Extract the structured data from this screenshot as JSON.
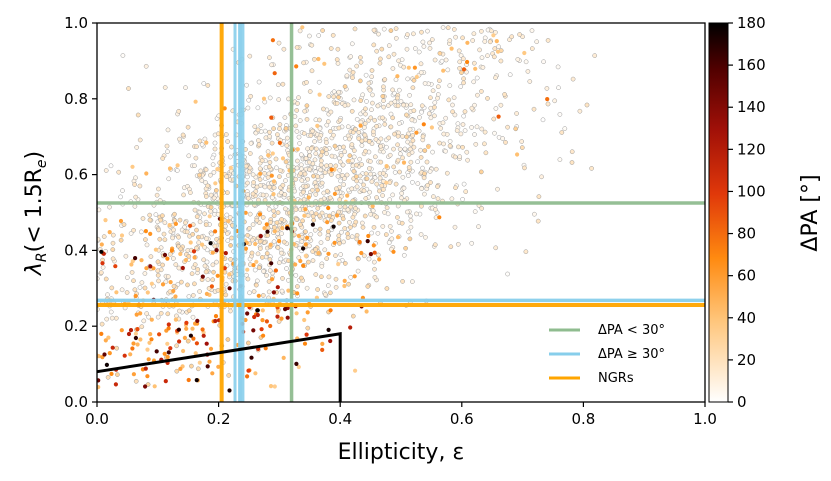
{
  "chart_data": {
    "type": "scatter",
    "xlabel": "Ellipticity, ε",
    "ylabel": "λ",
    "ylabel_sub": "R",
    "ylabel_tail": "(< 1.5R",
    "ylabel_tail_sub": "e",
    "ylabel_close": ")",
    "xlim": [
      0.0,
      1.0
    ],
    "ylim": [
      0.0,
      1.0
    ],
    "xticks": [
      "0.0",
      "0.2",
      "0.4",
      "0.6",
      "0.8",
      "1.0"
    ],
    "yticks": [
      "0.0",
      "0.2",
      "0.4",
      "0.6",
      "0.8",
      "1.0"
    ],
    "colorbar": {
      "label": "ΔPA [°]",
      "range": [
        0,
        180
      ],
      "ticks": [
        "0",
        "20",
        "40",
        "60",
        "80",
        "100",
        "120",
        "140",
        "160",
        "180"
      ],
      "colormap": "gist_heat_r"
    },
    "reference_lines": [
      {
        "name": "ΔPA < 30°",
        "color": "#8fbc8f",
        "x": 0.32,
        "y": 0.525
      },
      {
        "name": "ΔPA  ≥  30°",
        "color": "#87ceeb",
        "x": 0.235,
        "y": 0.268
      },
      {
        "name": "NGRs",
        "color": "#ffa500",
        "x": 0.205,
        "y": 0.256
      }
    ],
    "highlighted_vlines_x": [
      0.227,
      0.24
    ],
    "fast_slow_boundary": [
      [
        0.0,
        0.08
      ],
      [
        0.4,
        0.18
      ],
      [
        0.4,
        0.0
      ]
    ],
    "legend": {
      "position": "lower-right",
      "entries": [
        "ΔPA < 30°",
        "ΔPA  ≥  30°",
        "NGRs"
      ]
    },
    "points_note": "~2000 galaxies; dense cloud 0<ε<0.75, 0.05<λR<1.0; high ΔPA points concentrated at low ε and low λR",
    "sample_count": 2200
  }
}
